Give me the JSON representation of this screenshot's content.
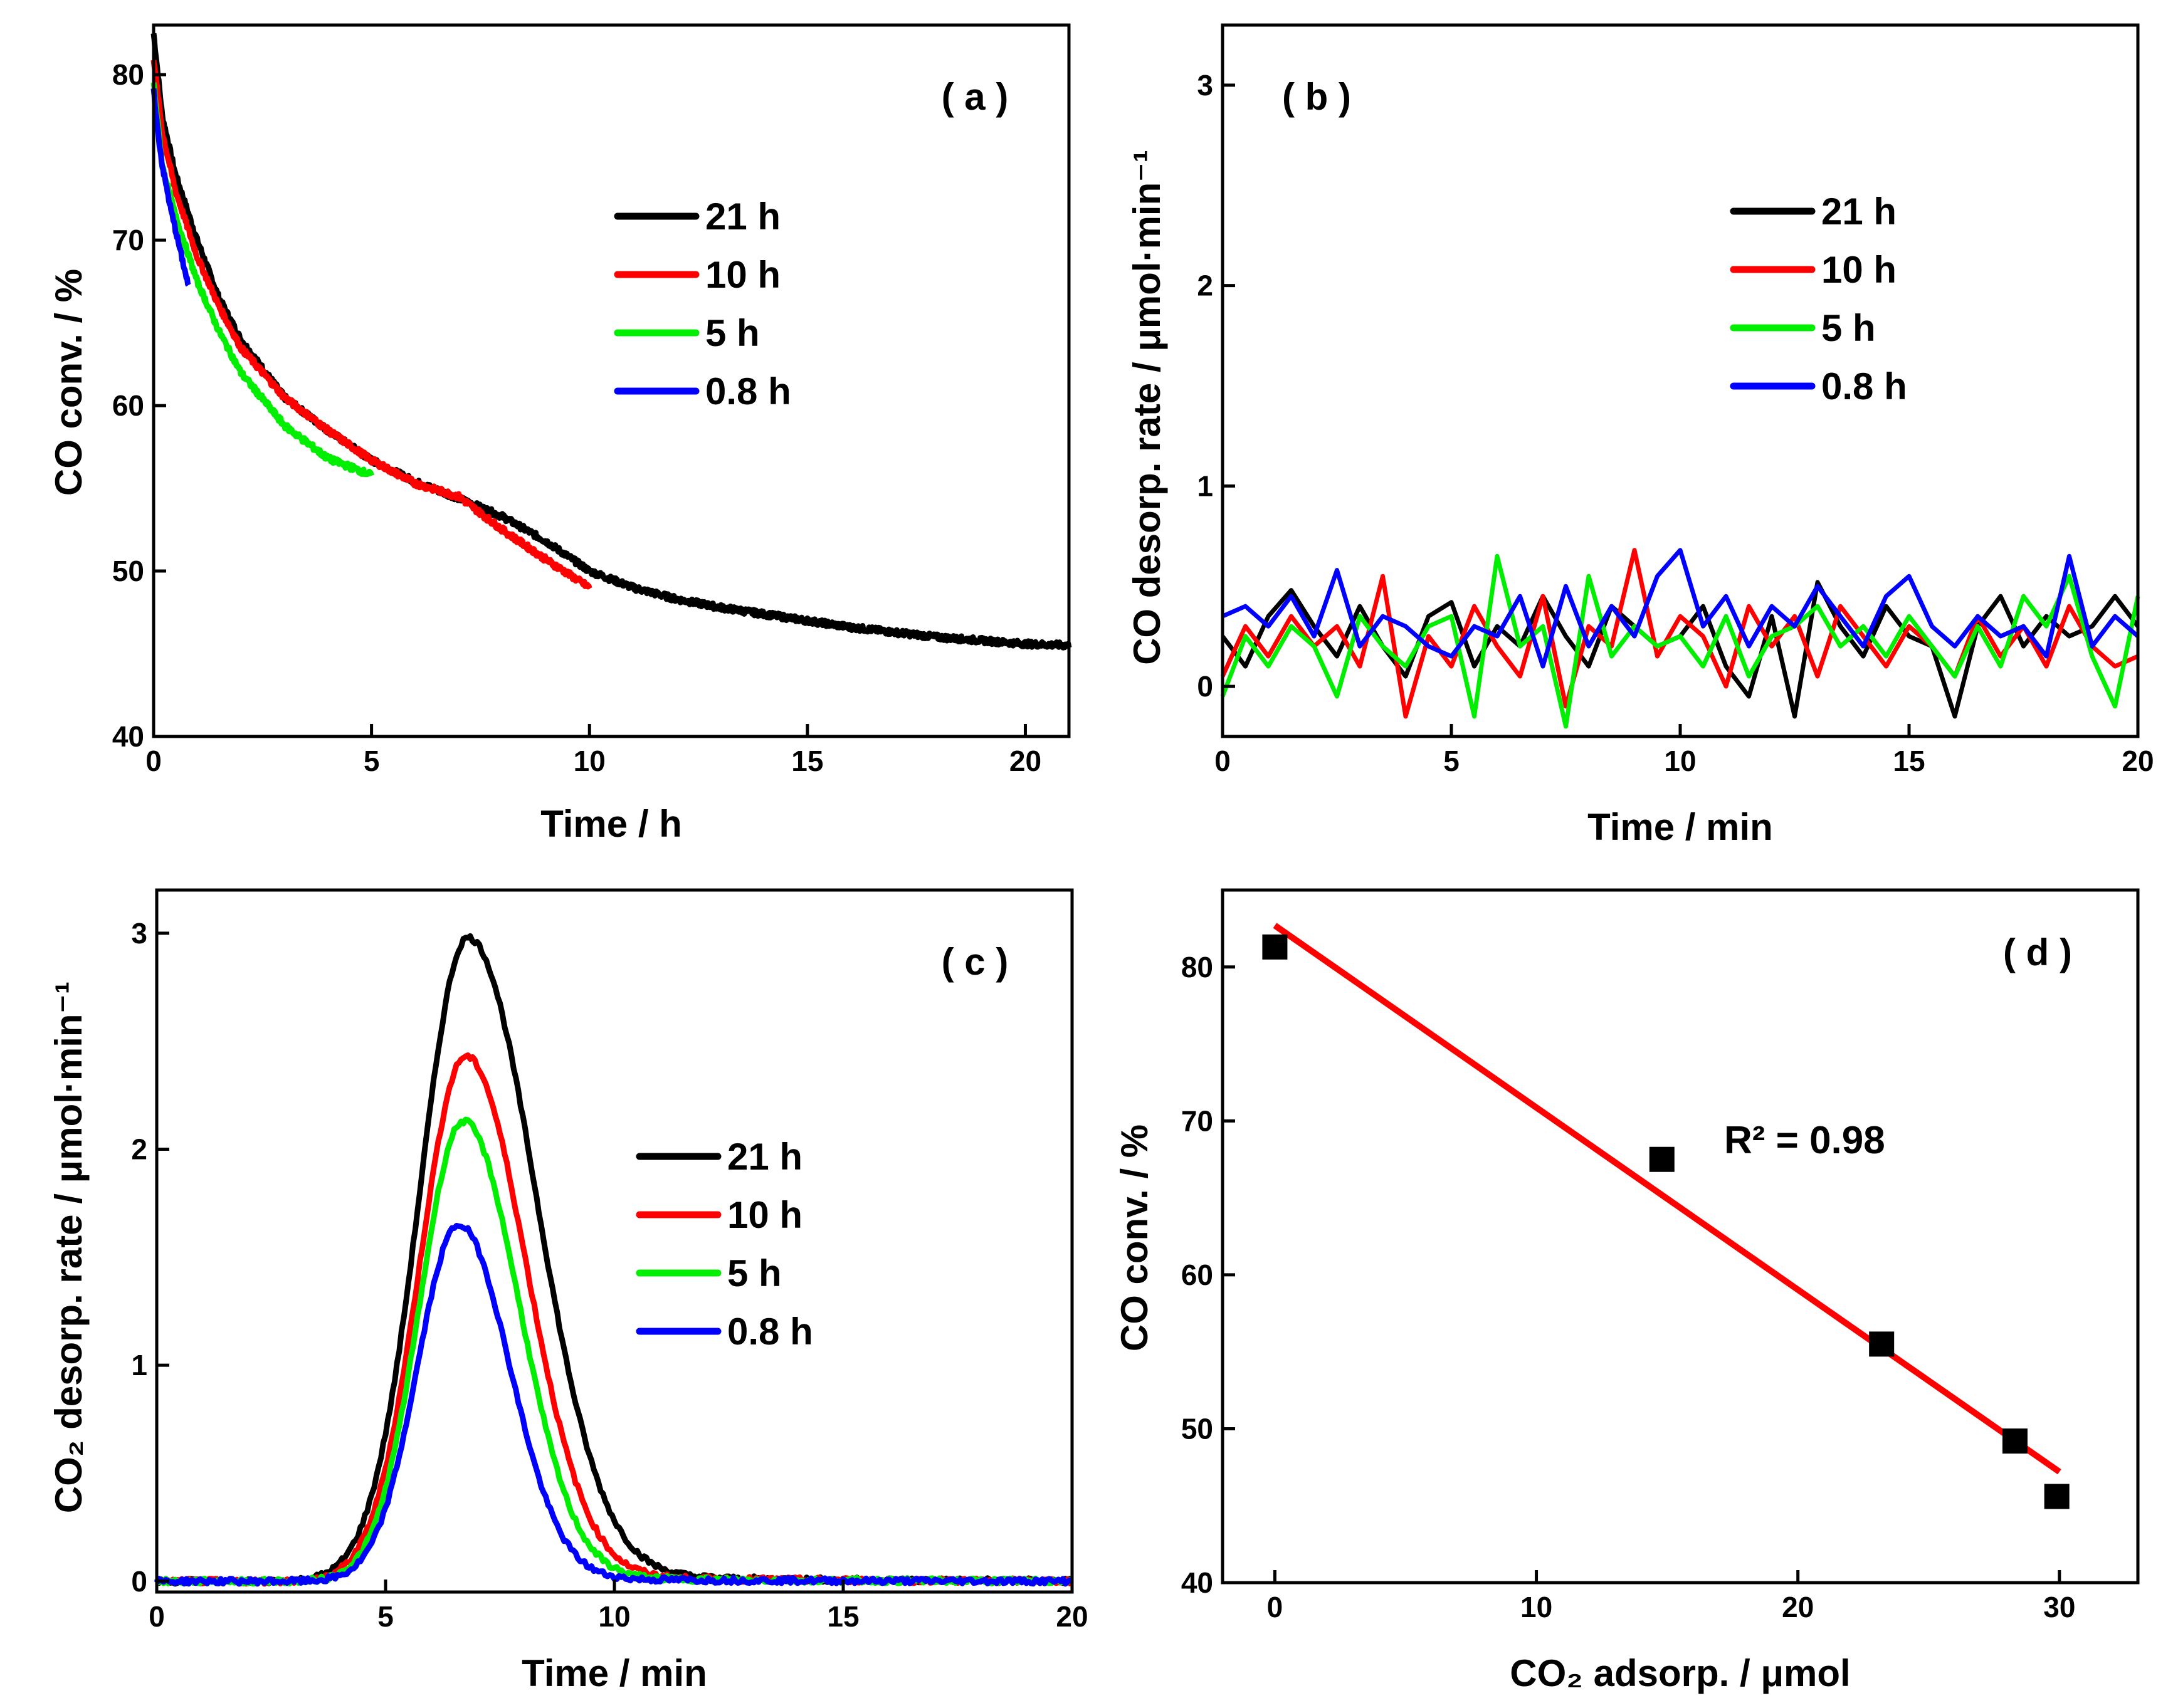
{
  "colors": {
    "21 h": "#000000",
    "10 h": "#ff0000",
    "5 h": "#00ee00",
    "0.8 h": "#0000ff",
    "fit": "#ff0000",
    "marker": "#000000"
  },
  "chart_data": [
    {
      "panel": "a",
      "type": "line",
      "panel_label": "( a )",
      "xlabel": "Time / h",
      "ylabel": "CO conv. / %",
      "xlim": [
        0,
        21
      ],
      "ylim": [
        40,
        83
      ],
      "xticks": [
        0,
        5,
        10,
        15,
        20
      ],
      "yticks": [
        40,
        50,
        60,
        70,
        80
      ],
      "legend": [
        "21 h",
        "10 h",
        "5 h",
        "0.8 h"
      ],
      "series": [
        {
          "name": "21 h",
          "x": [
            0,
            0.2,
            0.5,
            1,
            1.5,
            2,
            3,
            4,
            5,
            6,
            7,
            8,
            9,
            10,
            11,
            12,
            13,
            14,
            15,
            16,
            17,
            18,
            19,
            20,
            21
          ],
          "y": [
            82.5,
            77.5,
            74,
            70,
            66.5,
            64,
            60.5,
            58.5,
            56.7,
            55.4,
            54.4,
            53.3,
            51.8,
            50,
            49,
            48.3,
            47.8,
            47.4,
            47,
            46.6,
            46.3,
            46,
            45.8,
            45.6,
            45.5
          ]
        },
        {
          "name": "10 h",
          "x": [
            0,
            0.2,
            0.5,
            1,
            1.5,
            2,
            3,
            4,
            5,
            6,
            7,
            8,
            9,
            10
          ],
          "y": [
            81,
            76.5,
            73,
            69,
            66,
            63.5,
            60.5,
            58.5,
            56.7,
            55.3,
            54.5,
            52.5,
            50.7,
            49
          ]
        },
        {
          "name": "5 h",
          "x": [
            0,
            0.2,
            0.5,
            1,
            1.5,
            2,
            3,
            4,
            5
          ],
          "y": [
            79.5,
            74.5,
            71.5,
            67.5,
            64.5,
            62,
            58.8,
            56.8,
            55.8
          ]
        },
        {
          "name": "0.8 h",
          "x": [
            0,
            0.1,
            0.2,
            0.4,
            0.6,
            0.8
          ],
          "y": [
            79,
            76.5,
            74.5,
            71.8,
            69.5,
            67.2
          ]
        }
      ]
    },
    {
      "panel": "b",
      "type": "line",
      "panel_label": "( b )",
      "xlabel": "Time / min",
      "ylabel": "CO desorp. rate / μmol·min⁻¹",
      "xlim": [
        0,
        20
      ],
      "ylim": [
        -0.25,
        3.3
      ],
      "xticks": [
        0,
        5,
        10,
        15,
        20
      ],
      "yticks": [
        0,
        1,
        2,
        3
      ],
      "legend": [
        "21 h",
        "10 h",
        "5 h",
        "0.8 h"
      ],
      "series": [
        {
          "name": "21 h",
          "x": [
            0,
            0.5,
            1,
            1.5,
            2,
            2.5,
            3,
            3.5,
            4,
            4.5,
            5,
            5.5,
            6,
            6.5,
            7,
            7.5,
            8,
            8.5,
            9,
            9.5,
            10,
            10.5,
            11,
            11.5,
            12,
            12.5,
            13,
            13.5,
            14,
            14.5,
            15,
            15.5,
            16,
            16.5,
            17,
            17.5,
            18,
            18.5,
            19,
            19.5,
            20
          ],
          "y": [
            0.25,
            0.1,
            0.35,
            0.48,
            0.3,
            0.15,
            0.4,
            0.2,
            0.05,
            0.35,
            0.42,
            0.1,
            0.3,
            0.2,
            0.45,
            0.25,
            0.1,
            0.4,
            0.3,
            0.2,
            0.25,
            0.4,
            0.1,
            -0.05,
            0.35,
            -0.15,
            0.52,
            0.3,
            0.15,
            0.4,
            0.25,
            0.2,
            -0.15,
            0.3,
            0.45,
            0.2,
            0.35,
            0.25,
            0.3,
            0.45,
            0.3
          ]
        },
        {
          "name": "10 h",
          "x": [
            0,
            0.5,
            1,
            1.5,
            2,
            2.5,
            3,
            3.5,
            4,
            4.5,
            5,
            5.5,
            6,
            6.5,
            7,
            7.5,
            8,
            8.5,
            9,
            9.5,
            10,
            10.5,
            11,
            11.5,
            12,
            12.5,
            13,
            13.5,
            14,
            14.5,
            15,
            15.5,
            16,
            16.5,
            17,
            17.5,
            18,
            18.5,
            19,
            19.5,
            20
          ],
          "y": [
            0.05,
            0.3,
            0.15,
            0.35,
            0.2,
            0.3,
            0.1,
            0.55,
            -0.15,
            0.25,
            0.1,
            0.4,
            0.2,
            0.05,
            0.45,
            -0.1,
            0.3,
            0.2,
            0.68,
            0.15,
            0.35,
            0.25,
            0,
            0.4,
            0.2,
            0.35,
            0.05,
            0.4,
            0.25,
            0.1,
            0.3,
            0.2,
            0.05,
            0.35,
            0.15,
            0.3,
            0.1,
            0.4,
            0.2,
            0.1,
            0.15
          ]
        },
        {
          "name": "5 h",
          "x": [
            0,
            0.5,
            1,
            1.5,
            2,
            2.5,
            3,
            3.5,
            4,
            4.5,
            5,
            5.5,
            6,
            6.5,
            7,
            7.5,
            8,
            8.5,
            9,
            9.5,
            10,
            10.5,
            11,
            11.5,
            12,
            12.5,
            13,
            13.5,
            14,
            14.5,
            15,
            15.5,
            16,
            16.5,
            17,
            17.5,
            18,
            18.5,
            19,
            19.5,
            20
          ],
          "y": [
            -0.05,
            0.25,
            0.1,
            0.3,
            0.2,
            -0.05,
            0.35,
            0.2,
            0.1,
            0.3,
            0.35,
            -0.15,
            0.65,
            0.2,
            0.3,
            -0.2,
            0.55,
            0.15,
            0.3,
            0.2,
            0.25,
            0.1,
            0.35,
            0.05,
            0.25,
            0.3,
            0.4,
            0.2,
            0.3,
            0.15,
            0.35,
            0.2,
            0.05,
            0.3,
            0.1,
            0.45,
            0.3,
            0.55,
            0.15,
            -0.1,
            0.45
          ]
        },
        {
          "name": "0.8 h",
          "x": [
            0,
            0.5,
            1,
            1.5,
            2,
            2.5,
            3,
            3.5,
            4,
            4.5,
            5,
            5.5,
            6,
            6.5,
            7,
            7.5,
            8,
            8.5,
            9,
            9.5,
            10,
            10.5,
            11,
            11.5,
            12,
            12.5,
            13,
            13.5,
            14,
            14.5,
            15,
            15.5,
            16,
            16.5,
            17,
            17.5,
            18,
            18.5,
            19,
            19.5,
            20
          ],
          "y": [
            0.35,
            0.4,
            0.3,
            0.45,
            0.25,
            0.58,
            0.2,
            0.35,
            0.3,
            0.2,
            0.15,
            0.3,
            0.25,
            0.45,
            0.1,
            0.5,
            0.2,
            0.4,
            0.25,
            0.55,
            0.68,
            0.3,
            0.45,
            0.2,
            0.4,
            0.3,
            0.5,
            0.35,
            0.2,
            0.45,
            0.55,
            0.3,
            0.2,
            0.35,
            0.25,
            0.3,
            0.15,
            0.65,
            0.2,
            0.35,
            0.25
          ]
        }
      ]
    },
    {
      "panel": "c",
      "type": "line",
      "panel_label": "( c )",
      "xlabel": "Time / min",
      "ylabel": "CO₂ desorp. rate / μmol·min⁻¹",
      "xlim": [
        0,
        20
      ],
      "ylim": [
        -0.05,
        3.2
      ],
      "xticks": [
        0,
        5,
        10,
        15,
        20
      ],
      "yticks": [
        0,
        1,
        2,
        3
      ],
      "legend": [
        "21 h",
        "10 h",
        "5 h",
        "0.8 h"
      ],
      "series": [
        {
          "name": "21 h",
          "peak": 2.98,
          "center": 6.8,
          "sigma_left": 1.05,
          "sigma_right": 1.45,
          "tail": 0.05
        },
        {
          "name": "10 h",
          "peak": 2.43,
          "center": 6.75,
          "sigma_left": 1.0,
          "sigma_right": 1.3,
          "tail": 0.04
        },
        {
          "name": "5 h",
          "peak": 2.13,
          "center": 6.7,
          "sigma_left": 0.95,
          "sigma_right": 1.2,
          "tail": 0.03
        },
        {
          "name": "0.8 h",
          "peak": 1.65,
          "center": 6.6,
          "sigma_left": 0.9,
          "sigma_right": 1.1,
          "tail": 0.02
        }
      ]
    },
    {
      "panel": "d",
      "type": "scatter",
      "panel_label": "( d )",
      "xlabel": "CO₂ adsorp. / μmol",
      "ylabel": "CO conv. / %",
      "xlim": [
        -2,
        33
      ],
      "ylim": [
        40,
        85
      ],
      "xticks": [
        0,
        10,
        20,
        30
      ],
      "yticks": [
        40,
        50,
        60,
        70,
        80
      ],
      "annotation": "R² = 0.98",
      "points": {
        "x": [
          0,
          14.8,
          23.2,
          28.3,
          29.9
        ],
        "y": [
          81.3,
          67.5,
          55.5,
          49.2,
          45.6
        ]
      },
      "fit": {
        "x": [
          0,
          30
        ],
        "y": [
          82.7,
          47.2
        ]
      }
    }
  ]
}
